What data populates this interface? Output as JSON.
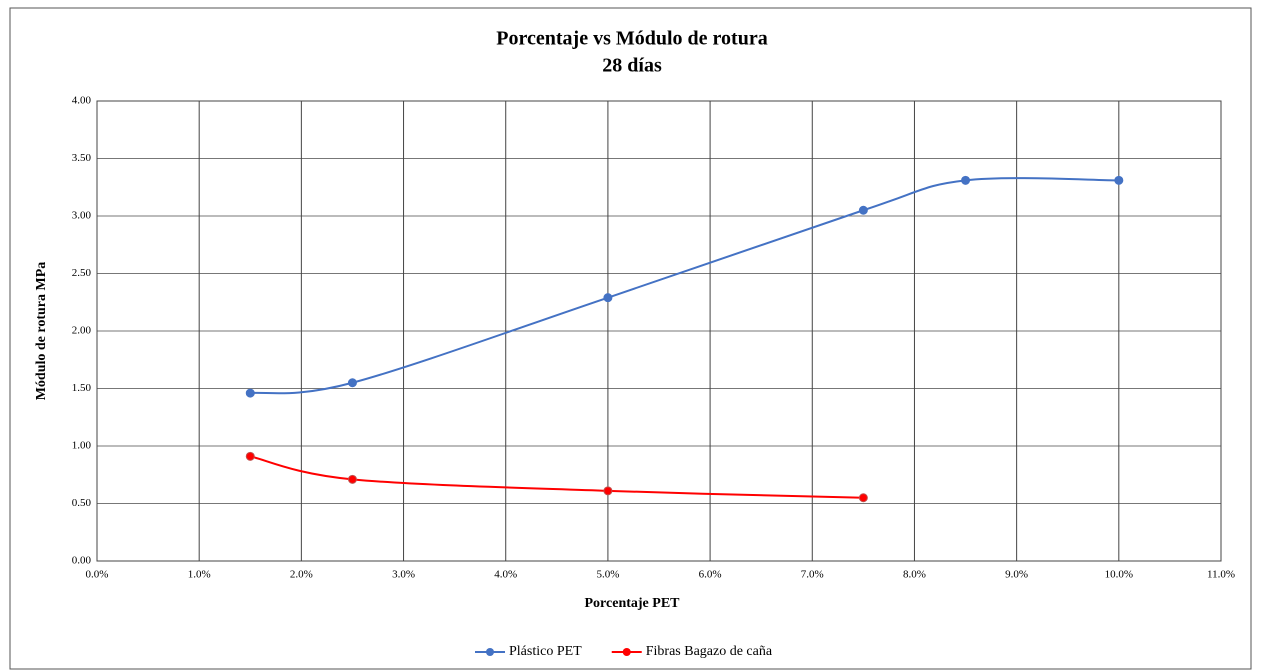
{
  "chart_data": {
    "type": "line",
    "title": "Porcentaje  vs Módulo de rotura",
    "subtitle": "28 días",
    "x_label": "Porcentaje PET",
    "y_label": "Módulo de rotura MPa",
    "series": [
      {
        "name": "Plástico PET",
        "color": "#4472c4",
        "x": [
          1.5,
          2.5,
          5,
          7.5,
          8.5,
          10
        ],
        "values": [
          1.46,
          1.55,
          2.29,
          3.05,
          3.31,
          3.31
        ]
      },
      {
        "name": "Fibras Bagazo de caña",
        "color": "#ff0000",
        "x": [
          1.5,
          2.5,
          5,
          7.5
        ],
        "values": [
          0.91,
          0.71,
          0.61,
          0.55
        ]
      }
    ],
    "xlim": [
      0,
      11
    ],
    "xticks": [
      {
        "value": 0,
        "label": "0.0%"
      },
      {
        "value": 1,
        "label": "1.0%"
      },
      {
        "value": 2,
        "label": "2.0%"
      },
      {
        "value": 3,
        "label": "3.0%"
      },
      {
        "value": 4,
        "label": "4.0%"
      },
      {
        "value": 5,
        "label": "5.0%"
      },
      {
        "value": 6,
        "label": "6.0%"
      },
      {
        "value": 7,
        "label": "7.0%"
      },
      {
        "value": 8,
        "label": "8.0%"
      },
      {
        "value": 9,
        "label": "9.0%"
      },
      {
        "value": 10,
        "label": "10.0%"
      },
      {
        "value": 11,
        "label": "11.0%"
      }
    ],
    "ylim": [
      0,
      4
    ],
    "yticks": [
      {
        "value": 0,
        "label": "0.00"
      },
      {
        "value": 0.5,
        "label": "0.50"
      },
      {
        "value": 1,
        "label": "1.00"
      },
      {
        "value": 1.5,
        "label": "1.50"
      },
      {
        "value": 2,
        "label": "2.00"
      },
      {
        "value": 2.5,
        "label": "2.50"
      },
      {
        "value": 3,
        "label": "3.00"
      },
      {
        "value": 3.5,
        "label": "3.50"
      },
      {
        "value": 4,
        "label": "4.00"
      }
    ],
    "grid": true,
    "smooth": true,
    "legend": "bottom"
  }
}
